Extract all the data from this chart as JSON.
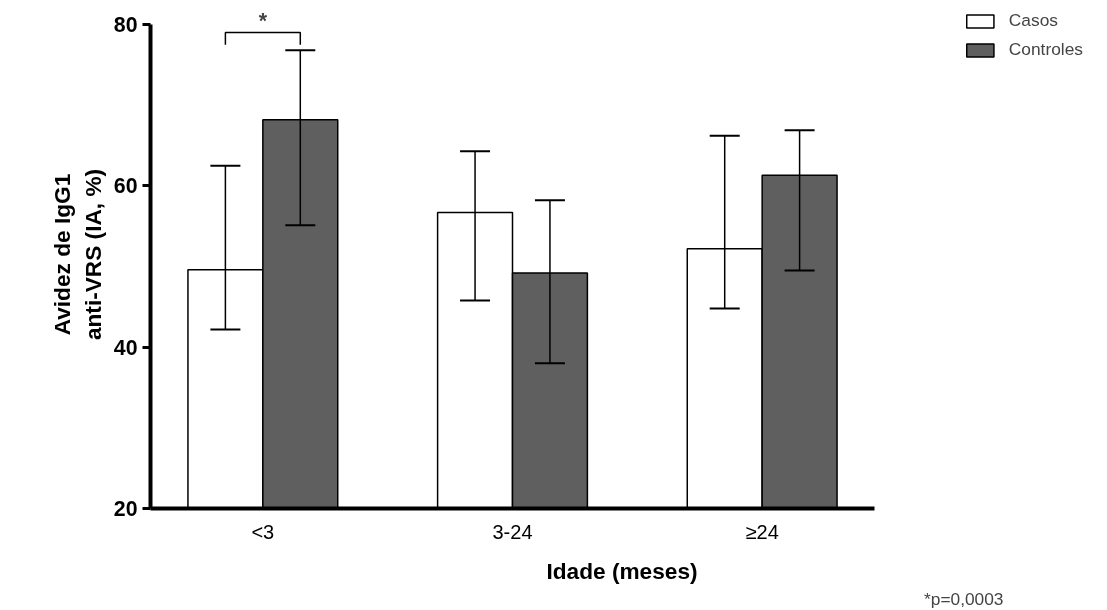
{
  "chart_data": {
    "type": "bar",
    "xlabel": "Idade (meses)",
    "ylabel": "Avidez de IgG1\nanti-VRS (IA, %)",
    "categories": [
      "<3",
      "3-24",
      "≥24"
    ],
    "series": [
      {
        "name": "Casos",
        "color": "#ffffff",
        "values": [
          49.6,
          56.7,
          52.2
        ],
        "errors": [
          [
            42.2,
            62.5
          ],
          [
            45.8,
            64.3
          ],
          [
            44.8,
            66.2
          ]
        ]
      },
      {
        "name": "Controles",
        "color": "#5f5f5f",
        "values": [
          68.2,
          49.2,
          61.3
        ],
        "errors": [
          [
            55.1,
            76.8
          ],
          [
            38.0,
            58.2
          ],
          [
            49.5,
            66.9
          ]
        ]
      }
    ],
    "ylim": [
      20,
      80
    ],
    "yticks": [
      20,
      40,
      60,
      80
    ],
    "grid": false,
    "legend": "top right",
    "annotations": [
      "*",
      "*p=0,0003"
    ]
  }
}
